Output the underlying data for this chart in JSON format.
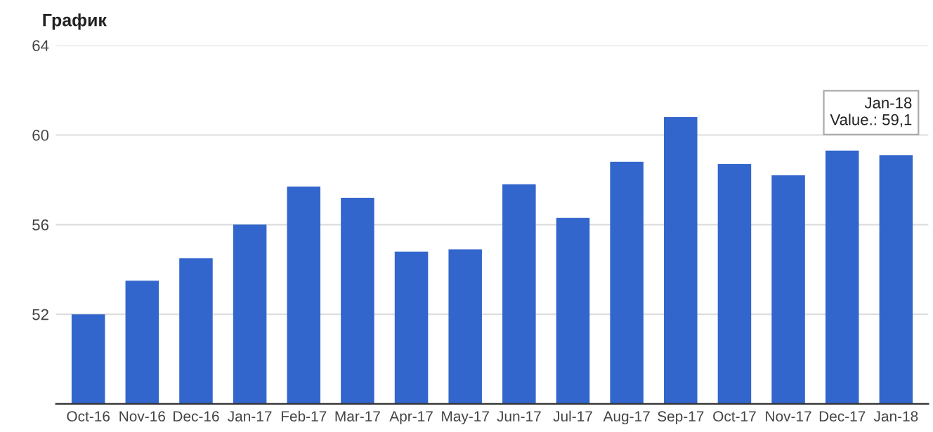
{
  "chart_data": {
    "type": "bar",
    "title": "График",
    "categories": [
      "Oct-16",
      "Nov-16",
      "Dec-16",
      "Jan-17",
      "Feb-17",
      "Mar-17",
      "Apr-17",
      "May-17",
      "Jun-17",
      "Jul-17",
      "Aug-17",
      "Sep-17",
      "Oct-17",
      "Nov-17",
      "Dec-17",
      "Jan-18"
    ],
    "values": [
      52.0,
      53.5,
      54.5,
      56.0,
      57.7,
      57.2,
      54.8,
      54.9,
      57.8,
      56.3,
      58.8,
      60.8,
      58.7,
      58.2,
      59.3,
      59.1
    ],
    "color": "#3366cc",
    "ylim": [
      48,
      64
    ],
    "yticks": [
      52,
      56,
      60,
      64
    ],
    "grid": "y",
    "annotations": [
      {
        "text": "Jan-18\nValue.: 59,1",
        "x": "Jan-18",
        "y": 59.1
      }
    ]
  }
}
